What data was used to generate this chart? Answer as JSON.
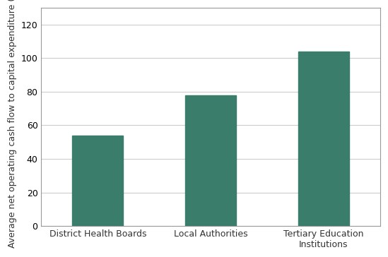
{
  "categories": [
    "District Health Boards",
    "Local Authorities",
    "Tertiary Education\nInstitutions"
  ],
  "values": [
    54,
    78,
    104
  ],
  "bar_color": "#3a7d6a",
  "ylabel": "Average net operating cash flow to capital expenditure (%)",
  "ylim": [
    0,
    130
  ],
  "yticks": [
    0,
    20,
    40,
    60,
    80,
    100,
    120
  ],
  "background_color": "#ffffff",
  "bar_width": 0.45,
  "ylabel_fontsize": 9,
  "tick_fontsize": 9,
  "xlabel_fontsize": 9
}
